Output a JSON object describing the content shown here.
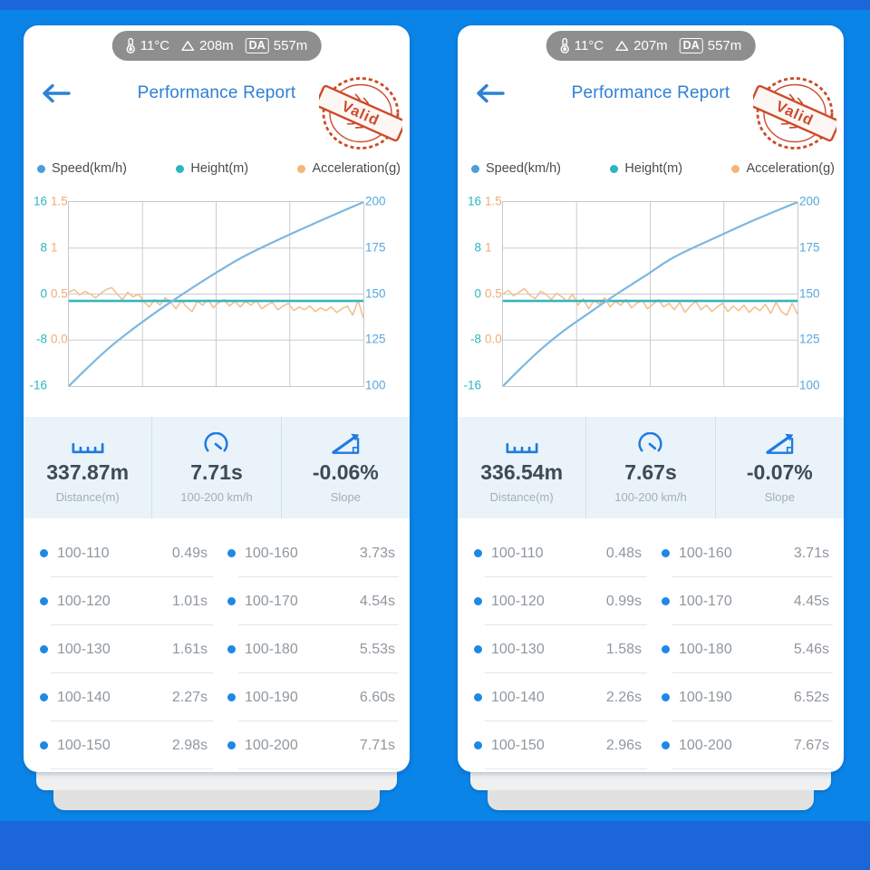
{
  "colors": {
    "background": "#0b84e8",
    "letterbox_band": "#1b67da",
    "accent_blue": "#2e80d6",
    "speed": "#7db7e0",
    "height": "#36b5bd",
    "acceleration": "#f2c191",
    "stamp_red": "#cd4a2a",
    "stats_bg": "#e9f3f9",
    "table_dot": "#1e88e5"
  },
  "icons": {
    "back-arrow-icon": "←",
    "thermometer-icon": "thermometer",
    "mountain-icon": "△",
    "ruler-icon": "ruler",
    "speedometer-icon": "gauge",
    "slope-icon": "slope-triangle",
    "legend-dot": "●"
  },
  "panels": [
    {
      "status": {
        "temperature": "11°C",
        "altitude": "208m",
        "da_label": "DA",
        "da_value": "557m"
      },
      "header": {
        "title": "Performance Report",
        "stamp_text": "Valid"
      },
      "legend": [
        {
          "label": "Speed(km/h)",
          "color": "#4a9ede"
        },
        {
          "label": "Height(m)",
          "color": "#2ab7bf"
        },
        {
          "label": "Acceleration(g)",
          "color": "#f5b47c"
        }
      ],
      "chart_data": {
        "type": "line",
        "grid": true,
        "total_time_s": 7.71,
        "axes": {
          "height_ticks": [
            "16",
            "8",
            "0",
            "-8",
            "-16"
          ],
          "height_range": [
            -16,
            16
          ],
          "accel_ticks": [
            "1.5",
            "1",
            "0.5",
            "0.0"
          ],
          "accel_range": [
            -0.5,
            1.5
          ],
          "speed_ticks": [
            "200",
            "175",
            "150",
            "125",
            "100"
          ],
          "speed_range": [
            100,
            200
          ]
        },
        "series": [
          {
            "name": "Speed(km/h)",
            "color": "#7db7e0",
            "t": [
              0,
              0.49,
              1.01,
              1.61,
              2.27,
              2.98,
              3.73,
              4.54,
              5.53,
              6.6,
              7.71
            ],
            "values": [
              100,
              110,
              120,
              130,
              140,
              150,
              160,
              170,
              180,
              190,
              200
            ]
          },
          {
            "name": "Height(m)",
            "color": "#36b5bd",
            "constant_value": -1.2
          },
          {
            "name": "Acceleration(g)",
            "color": "#f2c191",
            "values": [
              0.52,
              0.55,
              0.49,
              0.53,
              0.5,
              0.46,
              0.51,
              0.55,
              0.57,
              0.5,
              0.44,
              0.52,
              0.47,
              0.5,
              0.42,
              0.36,
              0.44,
              0.38,
              0.46,
              0.41,
              0.34,
              0.43,
              0.36,
              0.31,
              0.42,
              0.38,
              0.44,
              0.35,
              0.41,
              0.44,
              0.37,
              0.42,
              0.36,
              0.42,
              0.38,
              0.43,
              0.34,
              0.38,
              0.41,
              0.33,
              0.37,
              0.4,
              0.32,
              0.36,
              0.33,
              0.37,
              0.31,
              0.35,
              0.32,
              0.36,
              0.3,
              0.34,
              0.37,
              0.27,
              0.43,
              0.24
            ]
          }
        ]
      },
      "stats": [
        {
          "value": "337.87m",
          "label": "Distance(m)",
          "icon": "ruler-icon"
        },
        {
          "value": "7.71s",
          "label": "100-200 km/h",
          "icon": "speedometer-icon"
        },
        {
          "value": "-0.06%",
          "label": "Slope",
          "icon": "slope-icon"
        }
      ],
      "intervals_left": [
        {
          "label": "100-110",
          "value": "0.49s"
        },
        {
          "label": "100-120",
          "value": "1.01s"
        },
        {
          "label": "100-130",
          "value": "1.61s"
        },
        {
          "label": "100-140",
          "value": "2.27s"
        },
        {
          "label": "100-150",
          "value": "2.98s"
        }
      ],
      "intervals_right": [
        {
          "label": "100-160",
          "value": "3.73s"
        },
        {
          "label": "100-170",
          "value": "4.54s"
        },
        {
          "label": "100-180",
          "value": "5.53s"
        },
        {
          "label": "100-190",
          "value": "6.60s"
        },
        {
          "label": "100-200",
          "value": "7.71s"
        }
      ]
    },
    {
      "status": {
        "temperature": "11°C",
        "altitude": "207m",
        "da_label": "DA",
        "da_value": "557m"
      },
      "header": {
        "title": "Performance Report",
        "stamp_text": "Valid"
      },
      "legend": [
        {
          "label": "Speed(km/h)",
          "color": "#4a9ede"
        },
        {
          "label": "Height(m)",
          "color": "#2ab7bf"
        },
        {
          "label": "Acceleration(g)",
          "color": "#f5b47c"
        }
      ],
      "chart_data": {
        "type": "line",
        "grid": true,
        "total_time_s": 7.67,
        "axes": {
          "height_ticks": [
            "16",
            "8",
            "0",
            "-8",
            "-16"
          ],
          "height_range": [
            -16,
            16
          ],
          "accel_ticks": [
            "1.5",
            "1",
            "0.5",
            "0.0"
          ],
          "accel_range": [
            -0.5,
            1.5
          ],
          "speed_ticks": [
            "200",
            "175",
            "150",
            "125",
            "100"
          ],
          "speed_range": [
            100,
            200
          ]
        },
        "series": [
          {
            "name": "Speed(km/h)",
            "color": "#7db7e0",
            "t": [
              0,
              0.48,
              0.99,
              1.58,
              2.26,
              2.96,
              3.71,
              4.45,
              5.46,
              6.52,
              7.67
            ],
            "values": [
              100,
              110,
              120,
              130,
              140,
              150,
              160,
              170,
              180,
              190,
              200
            ]
          },
          {
            "name": "Height(m)",
            "color": "#36b5bd",
            "constant_value": -1.2
          },
          {
            "name": "Acceleration(g)",
            "color": "#f2c191",
            "values": [
              0.5,
              0.54,
              0.48,
              0.52,
              0.56,
              0.49,
              0.45,
              0.53,
              0.5,
              0.44,
              0.51,
              0.47,
              0.42,
              0.5,
              0.38,
              0.45,
              0.34,
              0.43,
              0.39,
              0.46,
              0.36,
              0.42,
              0.38,
              0.44,
              0.35,
              0.4,
              0.43,
              0.34,
              0.39,
              0.44,
              0.36,
              0.4,
              0.33,
              0.41,
              0.3,
              0.37,
              0.42,
              0.33,
              0.38,
              0.31,
              0.36,
              0.4,
              0.31,
              0.37,
              0.32,
              0.38,
              0.3,
              0.36,
              0.32,
              0.39,
              0.29,
              0.41,
              0.31,
              0.27,
              0.4,
              0.28
            ]
          }
        ]
      },
      "stats": [
        {
          "value": "336.54m",
          "label": "Distance(m)",
          "icon": "ruler-icon"
        },
        {
          "value": "7.67s",
          "label": "100-200 km/h",
          "icon": "speedometer-icon"
        },
        {
          "value": "-0.07%",
          "label": "Slope",
          "icon": "slope-icon"
        }
      ],
      "intervals_left": [
        {
          "label": "100-110",
          "value": "0.48s"
        },
        {
          "label": "100-120",
          "value": "0.99s"
        },
        {
          "label": "100-130",
          "value": "1.58s"
        },
        {
          "label": "100-140",
          "value": "2.26s"
        },
        {
          "label": "100-150",
          "value": "2.96s"
        }
      ],
      "intervals_right": [
        {
          "label": "100-160",
          "value": "3.71s"
        },
        {
          "label": "100-170",
          "value": "4.45s"
        },
        {
          "label": "100-180",
          "value": "5.46s"
        },
        {
          "label": "100-190",
          "value": "6.52s"
        },
        {
          "label": "100-200",
          "value": "7.67s"
        }
      ]
    }
  ]
}
